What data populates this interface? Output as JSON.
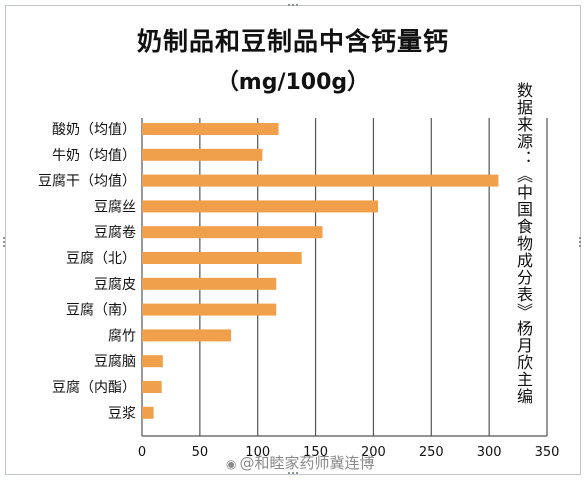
{
  "title": "奶制品和豆制品中含钙量钙",
  "subtitle": "（mg/100g）",
  "source_note": "数据来源：《中国食物成分表》杨月欣主编",
  "watermark": "@和睦家药师冀连博",
  "colors": {
    "bar": "#F0A04B",
    "grid": "#555555",
    "axis": "#555555"
  },
  "chart_data": {
    "type": "bar",
    "orientation": "horizontal",
    "categories": [
      "酸奶（均值）",
      "牛奶（均值）",
      "豆腐干（均值）",
      "豆腐丝",
      "豆腐卷",
      "豆腐（北）",
      "豆腐皮",
      "豆腐（南）",
      "腐竹",
      "豆腐脑",
      "豆腐（内酯）",
      "豆浆"
    ],
    "values": [
      118,
      104,
      308,
      204,
      156,
      138,
      116,
      116,
      77,
      18,
      17,
      10
    ],
    "xlim": [
      0,
      350
    ],
    "xticks": [
      "0",
      "50",
      "100",
      "150",
      "200",
      "250",
      "300",
      "350"
    ],
    "grid": true,
    "title": "奶制品和豆制品中含钙量钙",
    "xlabel": "",
    "ylabel": ""
  }
}
